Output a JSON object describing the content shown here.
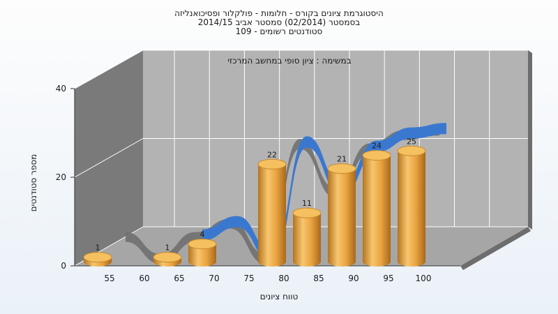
{
  "chart_data": {
    "type": "bar",
    "title_lines": [
      "היסטוגרמת ציונים בקורס - חלומות - פולקלור ופסיכואנליזה",
      "בסמסטר (02/2014) סמסטר אביב 2014/15",
      "סטודנטים רשומים - 109"
    ],
    "subtitle": "במשימה : ציון סופי במחשב המרכזי",
    "xlabel": "טווח ציונים",
    "ylabel": "מספר סטודנטים",
    "categories": [
      "55",
      "60",
      "65",
      "70",
      "75",
      "80",
      "85",
      "90",
      "95",
      "100"
    ],
    "values": [
      1,
      0,
      1,
      4,
      0,
      22,
      11,
      21,
      24,
      25
    ],
    "ylim": [
      0,
      40
    ],
    "yticks": [
      0,
      20,
      40
    ],
    "grid": true,
    "bar_color": "#e8a33c",
    "ribbon_color": "#3a78d0",
    "shadow_ribbon_color": "#707070",
    "wall_color": "#b3b3b3",
    "side_wall_color": "#7a7a7a",
    "floor_color": "#a6a6a6"
  }
}
